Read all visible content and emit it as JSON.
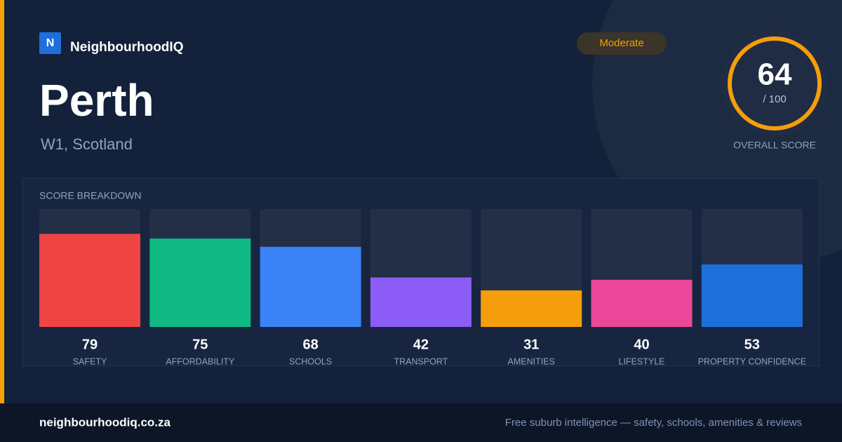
{
  "brand": {
    "logo": "N",
    "name": "NeighbourhoodIQ"
  },
  "badge": "Moderate",
  "title": "Perth",
  "subtitle": "W1, Scotland",
  "score": {
    "value": 64,
    "max": {
      "value": 100,
      "label": "/ 100"
    },
    "label": "OVERALL SCORE"
  },
  "breakdown": {
    "heading": "SCORE BREAKDOWN",
    "items": [
      {
        "label": "SAFETY",
        "value": 79,
        "color": "#ef4444"
      },
      {
        "label": "AFFORDABILITY",
        "value": 75,
        "color": "#10b981"
      },
      {
        "label": "SCHOOLS",
        "value": 68,
        "color": "#3b82f6"
      },
      {
        "label": "TRANSPORT",
        "value": 42,
        "color": "#8b5cf6"
      },
      {
        "label": "AMENITIES",
        "value": 31,
        "color": "#f59e0b"
      },
      {
        "label": "LIFESTYLE",
        "value": 40,
        "color": "#ec4899"
      },
      {
        "label": "PROPERTY CONFIDENCE",
        "value": 53,
        "color": "#1d6fdc"
      }
    ]
  },
  "footer": {
    "url": "neighbourhoodiq.co.za",
    "tagline": "Free suburb intelligence — safety, schools, amenities & reviews"
  }
}
